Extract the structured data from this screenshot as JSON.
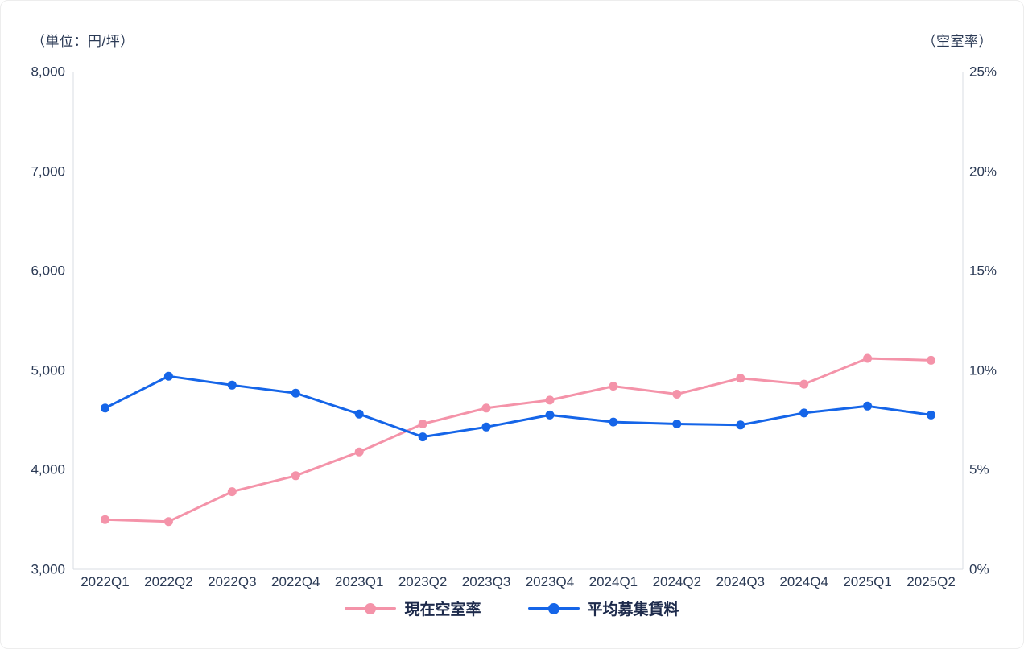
{
  "chart_data": {
    "type": "line",
    "categories": [
      "2022Q1",
      "2022Q2",
      "2022Q3",
      "2022Q4",
      "2023Q1",
      "2023Q2",
      "2023Q3",
      "2023Q4",
      "2024Q1",
      "2024Q2",
      "2024Q3",
      "2024Q4",
      "2025Q1",
      "2025Q2"
    ],
    "series": [
      {
        "id": "current-vacancy-rate",
        "name": "現在空室率",
        "axis": "right",
        "unit": "%",
        "color": "#F493A9",
        "values": [
          2.5,
          2.4,
          3.9,
          4.7,
          5.9,
          7.3,
          8.1,
          8.5,
          9.2,
          8.8,
          9.6,
          9.3,
          10.6,
          10.5
        ]
      },
      {
        "id": "average-asking-rent",
        "name": "平均募集賃料",
        "axis": "left",
        "unit": "円/坪",
        "color": "#1565E8",
        "values": [
          4620,
          4940,
          4850,
          4770,
          4560,
          4330,
          4430,
          4550,
          4480,
          4460,
          4450,
          4570,
          4640,
          4550
        ]
      }
    ],
    "left_axis": {
      "title": "（単位：円/坪）",
      "min": 3000,
      "max": 8000,
      "step": 1000,
      "tick_labels": [
        "8,000",
        "7,000",
        "6,000",
        "5,000",
        "4,000",
        "3,000"
      ]
    },
    "right_axis": {
      "title": "（空室率）",
      "min": 0,
      "max": 25,
      "step": 5,
      "tick_labels": [
        "25%",
        "20%",
        "15%",
        "10%",
        "5%",
        "0%"
      ]
    },
    "legend_position": "bottom",
    "grid": false,
    "title": ""
  },
  "colors": {
    "text": "#2B3A55",
    "legend_text": "#1E2B4C",
    "axis_line": "#D9DDE3",
    "background": "#FFFFFF",
    "series_pink": "#F493A9",
    "series_blue": "#1565E8"
  }
}
